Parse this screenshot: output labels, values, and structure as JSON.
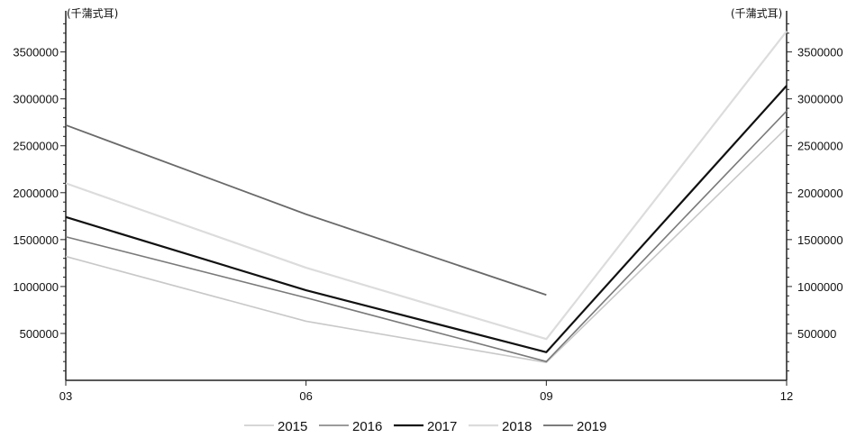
{
  "chart_data": {
    "type": "line",
    "categories": [
      "03",
      "06",
      "09",
      "12"
    ],
    "y_unit_left": "(千蒲式耳)",
    "y_unit_right": "(千蒲式耳)",
    "ylim": [
      0,
      3900000
    ],
    "yticks": [
      500000,
      1000000,
      1500000,
      2000000,
      2500000,
      3000000,
      3500000
    ],
    "ytick_labels": [
      "500000",
      "1000000",
      "1500000",
      "2000000",
      "2500000",
      "3000000",
      "3500000"
    ],
    "grid": false,
    "legend_position": "bottom",
    "series": [
      {
        "name": "2015",
        "color": "#c8c8c8",
        "width": 1.6,
        "values": [
          1320000,
          630000,
          190000,
          2690000
        ]
      },
      {
        "name": "2016",
        "color": "#7a7a7a",
        "width": 1.6,
        "values": [
          1530000,
          880000,
          200000,
          2870000
        ]
      },
      {
        "name": "2017",
        "color": "#111111",
        "width": 2.2,
        "values": [
          1740000,
          960000,
          300000,
          3140000
        ]
      },
      {
        "name": "2018",
        "color": "#dcdcdc",
        "width": 2.2,
        "values": [
          2100000,
          1200000,
          440000,
          3720000
        ]
      },
      {
        "name": "2019",
        "color": "#6a6a6a",
        "width": 1.8,
        "values": [
          2720000,
          1770000,
          910000,
          null
        ]
      }
    ]
  }
}
